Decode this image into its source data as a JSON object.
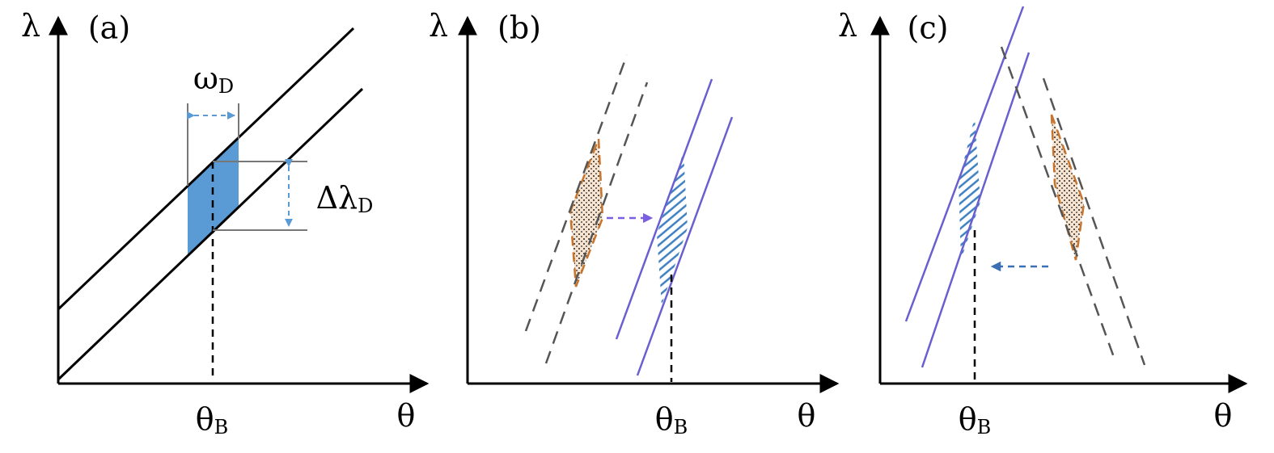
{
  "panels": [
    {
      "label": "(a)",
      "y_axis": "λ",
      "x_axis": "θ",
      "marker": {
        "symbol": "θ",
        "subscript": "B"
      },
      "annotations": [
        {
          "symbol": "ω",
          "subscript": "D"
        },
        {
          "symbol": "Δλ",
          "subscript": "D"
        }
      ]
    },
    {
      "label": "(b)",
      "y_axis": "λ",
      "x_axis": "θ",
      "marker": {
        "symbol": "θ",
        "subscript": "B"
      }
    },
    {
      "label": "(c)",
      "y_axis": "λ",
      "x_axis": "θ",
      "marker": {
        "symbol": "θ",
        "subscript": "B"
      }
    }
  ]
}
